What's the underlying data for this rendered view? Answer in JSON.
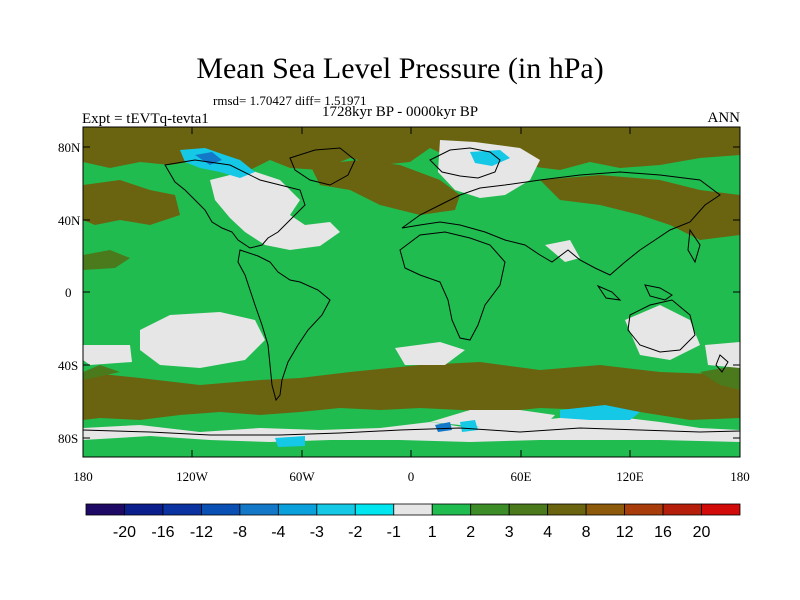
{
  "title": "Mean Sea Level Pressure (in hPa)",
  "stats_text": "rmsd= 1.70427 diff= 1.51971",
  "experiment_text": "Expt = tEVTq-tevta1",
  "period_text": "1728kyr BP - 0000kyr BP",
  "season_text": "ANN",
  "lat_labels": [
    "80N",
    "40N",
    "0",
    "40S",
    "80S"
  ],
  "lon_labels": [
    "180",
    "120W",
    "60W",
    "0",
    "60E",
    "120E",
    "180"
  ],
  "colorbar": {
    "colors": [
      "#1e0a64",
      "#0a1e8c",
      "#0a32a0",
      "#0a50b4",
      "#1478c8",
      "#0aa0dc",
      "#14c8e6",
      "#00e6f0",
      "#e6e6e6",
      "#20bc50",
      "#3c8c28",
      "#4a7a1c",
      "#6a6410",
      "#8c5a0a",
      "#a83c0a",
      "#b41e0a",
      "#d20a0a"
    ],
    "labels": [
      "-20",
      "-16",
      "-12",
      "-8",
      "-4",
      "-3",
      "-2",
      "-1",
      "1",
      "2",
      "3",
      "4",
      "8",
      "12",
      "16",
      "20"
    ]
  },
  "chart_data": {
    "type": "map",
    "variable": "Mean Sea Level Pressure",
    "units": "hPa",
    "projection": "cylindrical equidistant",
    "lon_range": [
      -180,
      180
    ],
    "lat_range": [
      -90,
      90
    ],
    "contour_levels": [
      -20,
      -16,
      -12,
      -8,
      -4,
      -3,
      -2,
      -1,
      1,
      2,
      3,
      4,
      8,
      12,
      16,
      20
    ],
    "rmsd": 1.70427,
    "diff": 1.51971,
    "dominant_range": "1 to 2 hPa over most of the globe",
    "high_anomalies": "3 to 8 hPa in Arctic, North Pacific / North Asia band and Southern Ocean belt",
    "low_anomalies": "-1 to -4 hPa over Canadian Arctic, Scandinavia and coastal Antarctica"
  }
}
